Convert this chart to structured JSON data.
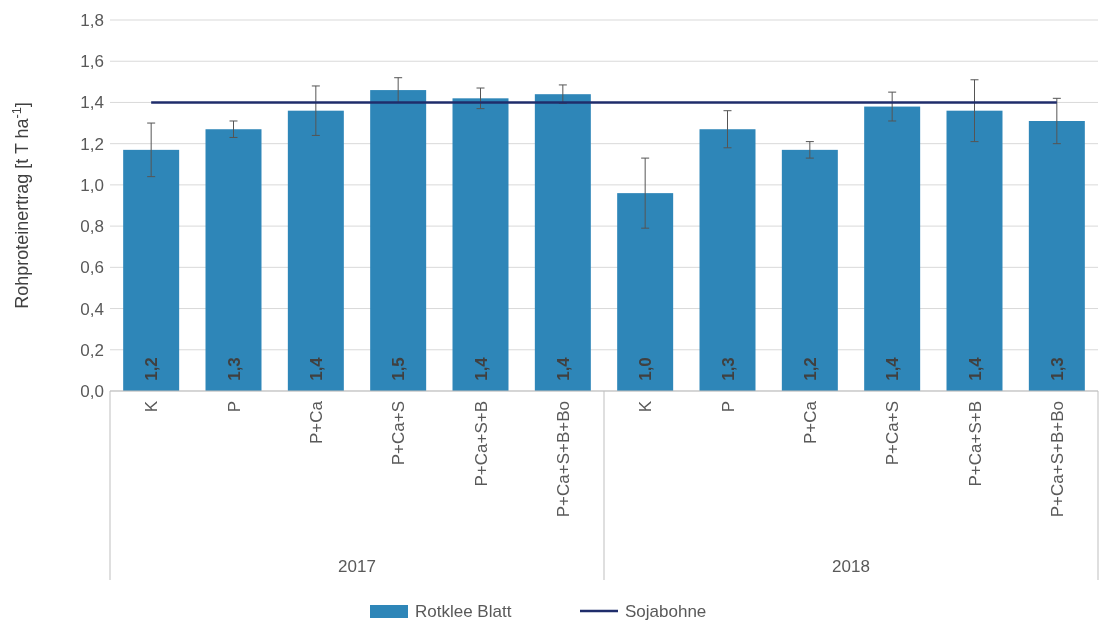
{
  "chart_data": {
    "type": "bar",
    "ylabel": "Rohproteinertrag [t  T ha$^{-1}$]",
    "categories": [
      "K",
      "P",
      "P+Ca",
      "P+Ca+S",
      "P+Ca+S+B",
      "P+Ca+S+B+Bo",
      "K",
      "P",
      "P+Ca",
      "P+Ca+S",
      "P+Ca+S+B",
      "P+Ca+S+B+Bo"
    ],
    "series": [
      {
        "name": "Rotklee Blatt",
        "color": "#2e86b8",
        "values": [
          1.17,
          1.27,
          1.36,
          1.46,
          1.42,
          1.44,
          0.96,
          1.27,
          1.17,
          1.38,
          1.36,
          1.31
        ],
        "errors": [
          0.13,
          0.04,
          0.12,
          0.06,
          0.05,
          0.045,
          0.17,
          0.09,
          0.04,
          0.07,
          0.15,
          0.11
        ],
        "value_labels": [
          "1,2",
          "1,3",
          "1,4",
          "1,5",
          "1,4",
          "1,4",
          "1,0",
          "1,3",
          "1,2",
          "1,4",
          "1,4",
          "1,3"
        ]
      },
      {
        "name": "Sojabohne",
        "type": "line",
        "color": "#1f2d6b",
        "values": [
          1.4,
          1.4,
          1.4,
          1.4,
          1.4,
          1.4,
          1.4,
          1.4,
          1.4,
          1.4,
          1.4,
          1.4
        ]
      }
    ],
    "annotations": [
      "2017",
      "2018"
    ],
    "ylim": [
      0,
      1.8
    ],
    "yticks": [
      {
        "value": 0,
        "label": "0,0"
      },
      {
        "value": 0.2,
        "label": "0,2"
      },
      {
        "value": 0.4,
        "label": "0,4"
      },
      {
        "value": 0.6,
        "label": "0,6"
      },
      {
        "value": 0.8,
        "label": "0,8"
      },
      {
        "value": 1,
        "label": "1,0"
      },
      {
        "value": 1.2,
        "label": "1,2"
      },
      {
        "value": 1.4,
        "label": "1,4"
      },
      {
        "value": 1.6,
        "label": "1,6"
      },
      {
        "value": 1.8,
        "label": "1,8"
      }
    ],
    "grid": "y",
    "legend": "bottom",
    "line_style": "solid"
  }
}
